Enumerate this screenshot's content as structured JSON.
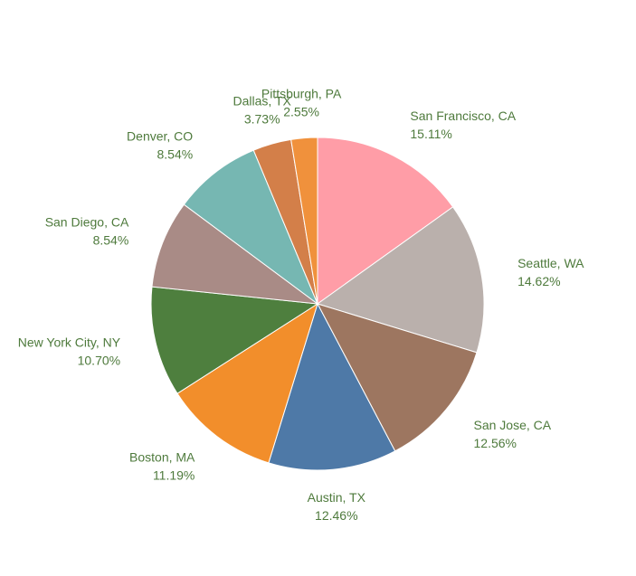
{
  "chart_data": {
    "type": "pie",
    "title": "",
    "start": "12 o'clock",
    "direction": "clockwise",
    "slices": [
      {
        "category": "San Francisco, CA",
        "pct_label": "15.11%",
        "value": 15.11,
        "color": "#ff9da7"
      },
      {
        "category": "Seattle, WA",
        "pct_label": "14.62%",
        "value": 14.62,
        "color": "#bab0ac"
      },
      {
        "category": "San Jose, CA",
        "pct_label": "12.56%",
        "value": 12.56,
        "color": "#9d7660"
      },
      {
        "category": "Austin, TX",
        "pct_label": "12.46%",
        "value": 12.46,
        "color": "#4e79a7"
      },
      {
        "category": "Boston, MA",
        "pct_label": "11.19%",
        "value": 11.19,
        "color": "#f28e2b"
      },
      {
        "category": "New York City, NY",
        "pct_label": "10.70%",
        "value": 10.7,
        "color": "#4e7f3e"
      },
      {
        "category": "San Diego, CA",
        "pct_label": "8.54%",
        "value": 8.54,
        "color": "#a98b86"
      },
      {
        "category": "Denver, CO",
        "pct_label": "8.54%",
        "value": 8.54,
        "color": "#76b7b2"
      },
      {
        "category": "Dallas, TX",
        "pct_label": "3.73%",
        "value": 3.73,
        "color": "#d37f49"
      },
      {
        "category": "Pittsburgh, PA",
        "pct_label": "2.55%",
        "value": 2.55,
        "color": "#f0913c"
      }
    ],
    "label_color": "#4e7a3c"
  }
}
